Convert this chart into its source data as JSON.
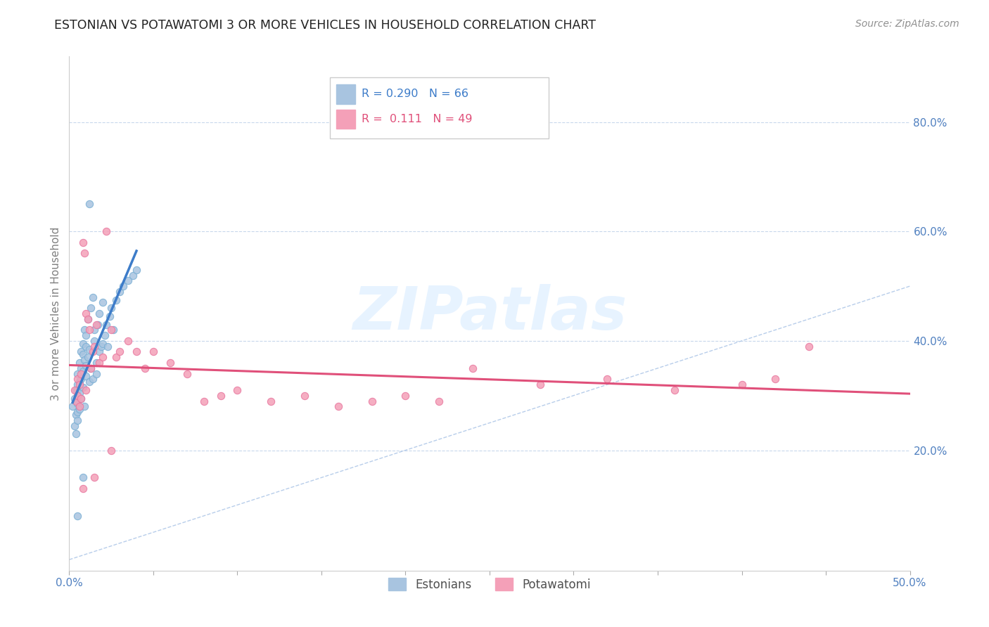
{
  "title": "ESTONIAN VS POTAWATOMI 3 OR MORE VEHICLES IN HOUSEHOLD CORRELATION CHART",
  "source": "Source: ZipAtlas.com",
  "ylabel": "3 or more Vehicles in Household",
  "R_estonian": 0.29,
  "N_estonian": 66,
  "R_potawatomi": 0.111,
  "N_potawatomi": 49,
  "estonian_color": "#a8c4e0",
  "estonian_edge_color": "#7aafd4",
  "potawatomi_color": "#f4a0b8",
  "potawatomi_edge_color": "#e878a0",
  "estonian_line_color": "#3d7cc9",
  "potawatomi_line_color": "#e0507a",
  "diagonal_color": "#b0c8e8",
  "background_color": "#ffffff",
  "grid_color": "#c8d8ec",
  "title_color": "#222222",
  "axis_label_color": "#5080c0",
  "ylabel_color": "#808080",
  "watermark_color": "#ddeeff",
  "legend_labels": [
    "Estonians",
    "Potawatomi"
  ],
  "xlim": [
    0.0,
    0.5
  ],
  "ylim": [
    -0.02,
    0.92
  ],
  "xticks": [
    0.0,
    0.05,
    0.1,
    0.15,
    0.2,
    0.25,
    0.3,
    0.35,
    0.4,
    0.45,
    0.5
  ],
  "xticklabels_show": [
    "0.0%",
    "",
    "",
    "",
    "",
    "",
    "",
    "",
    "",
    "",
    "50.0%"
  ],
  "yticks_right": [
    0.2,
    0.4,
    0.6,
    0.8
  ],
  "yticklabels_right": [
    "20.0%",
    "40.0%",
    "60.0%",
    "80.0%"
  ],
  "hgrid_yticks": [
    0.2,
    0.4,
    0.6,
    0.8
  ],
  "watermark": "ZIPatlas",
  "estonian_x": [
    0.002,
    0.003,
    0.003,
    0.004,
    0.004,
    0.004,
    0.005,
    0.005,
    0.005,
    0.005,
    0.005,
    0.005,
    0.005,
    0.005,
    0.006,
    0.006,
    0.006,
    0.006,
    0.007,
    0.007,
    0.007,
    0.007,
    0.008,
    0.008,
    0.008,
    0.008,
    0.009,
    0.009,
    0.009,
    0.01,
    0.01,
    0.01,
    0.01,
    0.011,
    0.011,
    0.012,
    0.012,
    0.013,
    0.013,
    0.014,
    0.014,
    0.015,
    0.015,
    0.016,
    0.016,
    0.017,
    0.018,
    0.018,
    0.019,
    0.02,
    0.02,
    0.021,
    0.022,
    0.023,
    0.024,
    0.025,
    0.026,
    0.028,
    0.03,
    0.032,
    0.035,
    0.038,
    0.04,
    0.012,
    0.008,
    0.005
  ],
  "estonian_y": [
    0.28,
    0.295,
    0.245,
    0.31,
    0.265,
    0.23,
    0.3,
    0.32,
    0.27,
    0.255,
    0.285,
    0.31,
    0.34,
    0.29,
    0.325,
    0.275,
    0.36,
    0.305,
    0.33,
    0.38,
    0.295,
    0.35,
    0.345,
    0.375,
    0.315,
    0.395,
    0.365,
    0.28,
    0.42,
    0.335,
    0.39,
    0.355,
    0.41,
    0.37,
    0.44,
    0.325,
    0.385,
    0.35,
    0.46,
    0.33,
    0.48,
    0.4,
    0.42,
    0.34,
    0.36,
    0.43,
    0.38,
    0.45,
    0.39,
    0.47,
    0.395,
    0.41,
    0.43,
    0.39,
    0.445,
    0.46,
    0.42,
    0.475,
    0.49,
    0.5,
    0.51,
    0.52,
    0.53,
    0.65,
    0.15,
    0.08
  ],
  "potawatomi_x": [
    0.003,
    0.004,
    0.005,
    0.005,
    0.006,
    0.006,
    0.007,
    0.007,
    0.008,
    0.009,
    0.01,
    0.01,
    0.011,
    0.012,
    0.013,
    0.014,
    0.015,
    0.016,
    0.018,
    0.02,
    0.022,
    0.025,
    0.028,
    0.03,
    0.035,
    0.04,
    0.045,
    0.05,
    0.06,
    0.07,
    0.08,
    0.09,
    0.1,
    0.12,
    0.14,
    0.16,
    0.18,
    0.2,
    0.22,
    0.24,
    0.28,
    0.32,
    0.36,
    0.4,
    0.42,
    0.44,
    0.008,
    0.015,
    0.025
  ],
  "potawatomi_y": [
    0.31,
    0.29,
    0.33,
    0.3,
    0.32,
    0.28,
    0.34,
    0.295,
    0.58,
    0.56,
    0.31,
    0.45,
    0.44,
    0.42,
    0.35,
    0.38,
    0.39,
    0.43,
    0.36,
    0.37,
    0.6,
    0.42,
    0.37,
    0.38,
    0.4,
    0.38,
    0.35,
    0.38,
    0.36,
    0.34,
    0.29,
    0.3,
    0.31,
    0.29,
    0.3,
    0.28,
    0.29,
    0.3,
    0.29,
    0.35,
    0.32,
    0.33,
    0.31,
    0.32,
    0.33,
    0.39,
    0.13,
    0.15,
    0.2
  ]
}
